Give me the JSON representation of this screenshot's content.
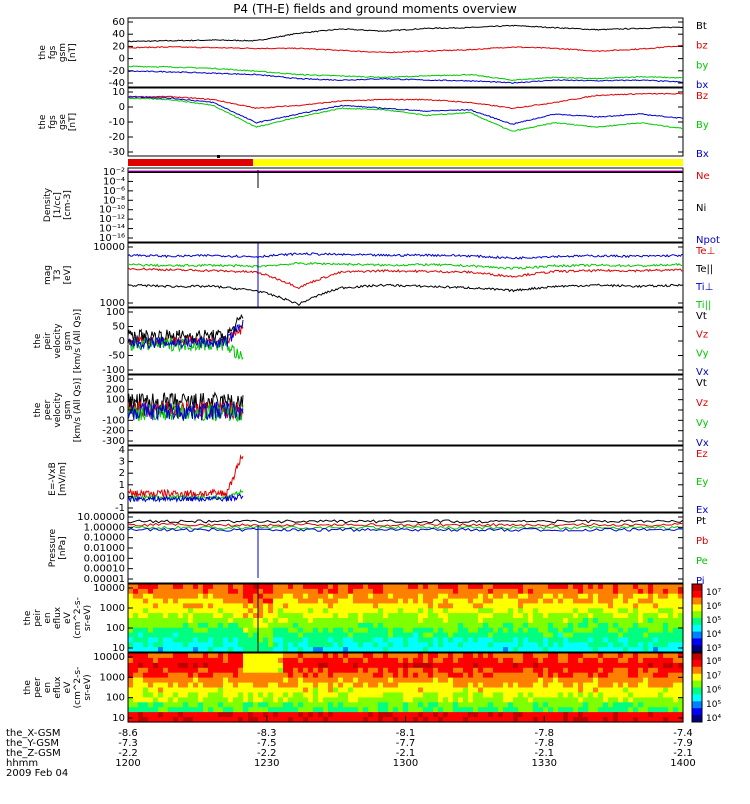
{
  "title": "P4 (TH-E) fields and ground moments overview",
  "date_label": "2009 Feb 04",
  "colors": {
    "black": "#000000",
    "red": "#e00000",
    "green": "#00c800",
    "blue": "#0000d0",
    "yellow": "#ffff00"
  },
  "chart_data": [
    {
      "id": "fgs_gsm",
      "type": "line",
      "ylabel": [
        "the",
        "fgs",
        "gsm",
        "[nT]"
      ],
      "ylim": [
        -40,
        60
      ],
      "yticks": [
        60,
        40,
        20,
        0,
        -20,
        -40
      ],
      "series": [
        {
          "name": "Bt",
          "color": "black",
          "values": [
            26,
            27,
            28,
            27,
            38,
            44,
            41,
            45,
            46,
            49,
            46,
            43,
            45,
            47
          ]
        },
        {
          "name": "bz",
          "color": "red",
          "values": [
            17,
            18,
            17,
            16,
            16,
            13,
            10,
            12,
            14,
            18,
            16,
            12,
            15,
            20
          ]
        },
        {
          "name": "by",
          "color": "green",
          "values": [
            -10,
            -11,
            -13,
            -17,
            -22,
            -24,
            -26,
            -24,
            -22,
            -30,
            -26,
            -28,
            -25,
            -27
          ]
        },
        {
          "name": "bx",
          "color": "blue",
          "values": [
            -17,
            -18,
            -20,
            -22,
            -28,
            -30,
            -28,
            -30,
            -31,
            -34,
            -30,
            -31,
            -30,
            -33
          ]
        }
      ]
    },
    {
      "id": "fgs_gse",
      "type": "line",
      "ylabel": [
        "the",
        "fgs",
        "gse",
        "[nT]"
      ],
      "ylim": [
        -35,
        12
      ],
      "yticks": [
        10,
        0,
        -10,
        -20,
        -30
      ],
      "series": [
        {
          "name": "Bz",
          "color": "red",
          "values": [
            6,
            6,
            4,
            -2,
            0,
            3,
            4,
            4,
            2,
            -2,
            2,
            7,
            8,
            8
          ]
        },
        {
          "name": "By",
          "color": "green",
          "values": [
            5,
            4,
            0,
            -15,
            -8,
            -2,
            -3,
            -7,
            -5,
            -18,
            -12,
            -15,
            -12,
            -16
          ]
        },
        {
          "name": "Bx",
          "color": "blue",
          "values": [
            6,
            5,
            2,
            -12,
            -6,
            0,
            -2,
            -4,
            -3,
            -13,
            -6,
            -8,
            -6,
            -9
          ]
        }
      ]
    },
    {
      "id": "density",
      "type": "line",
      "ylabel": [
        "Density",
        "[1/cc]",
        "[cm-3]"
      ],
      "yticks": [
        "10⁻²",
        "10⁻⁴",
        "10⁻⁶",
        "10⁻⁸",
        "10⁻¹⁰",
        "10⁻¹²",
        "10⁻¹⁴",
        "10⁻¹⁶"
      ],
      "series": [
        {
          "name": "Ne",
          "color": "red"
        },
        {
          "name": "Ni",
          "color": "black"
        },
        {
          "name": "Npot",
          "color": "blue"
        }
      ]
    },
    {
      "id": "temperature",
      "type": "line",
      "ylabel": [
        "mag",
        "T3",
        "[eV]"
      ],
      "ylim": [
        1000,
        10000
      ],
      "yticks": [
        "10000",
        "1000"
      ],
      "series": [
        {
          "name": "Te⊥",
          "color": "red",
          "values": [
            4000,
            3800,
            3700,
            3500,
            2000,
            3500,
            3700,
            3600,
            3500,
            3000,
            3600,
            3700,
            3700,
            3800
          ]
        },
        {
          "name": "Te||",
          "color": "black",
          "values": [
            2200,
            2100,
            2100,
            1800,
            1100,
            2000,
            2200,
            2100,
            2000,
            1800,
            2100,
            2200,
            2100,
            2200
          ]
        },
        {
          "name": "Ti⊥",
          "color": "blue",
          "values": [
            6500,
            6200,
            6400,
            6100,
            6800,
            6600,
            6400,
            6500,
            6300,
            5800,
            6200,
            6300,
            6200,
            6400
          ]
        },
        {
          "name": "Ti||",
          "color": "green",
          "values": [
            4600,
            4400,
            4500,
            4300,
            4800,
            4700,
            4500,
            4600,
            4400,
            4000,
            4400,
            4500,
            4400,
            4600
          ]
        }
      ]
    },
    {
      "id": "peir_velocity",
      "type": "line",
      "ylabel": [
        "the",
        "peir",
        "velocity",
        "gsm",
        "[km/s (All Qs)]"
      ],
      "ylim": [
        -100,
        100
      ],
      "yticks": [
        100,
        50,
        0,
        -50,
        -100
      ],
      "series": [
        {
          "name": "Vt",
          "color": "black"
        },
        {
          "name": "Vz",
          "color": "red"
        },
        {
          "name": "Vy",
          "color": "green"
        },
        {
          "name": "Vx",
          "color": "blue"
        }
      ]
    },
    {
      "id": "peer_velocity",
      "type": "line",
      "ylabel": [
        "the",
        "peer",
        "velocity",
        "gsm",
        "[km/s (All Qs)]"
      ],
      "ylim": [
        -300,
        300
      ],
      "yticks": [
        300,
        200,
        100,
        0,
        -100,
        -200,
        -300
      ],
      "series": [
        {
          "name": "Vt",
          "color": "black"
        },
        {
          "name": "Vz",
          "color": "red"
        },
        {
          "name": "Vy",
          "color": "green"
        },
        {
          "name": "Vx",
          "color": "blue"
        }
      ]
    },
    {
      "id": "efield",
      "type": "line",
      "ylabel": [
        "E=-VxB",
        "[mV/m]"
      ],
      "ylim": [
        -1,
        4
      ],
      "yticks": [
        4,
        3,
        2,
        1,
        0,
        -1
      ],
      "series": [
        {
          "name": "Ez",
          "color": "red"
        },
        {
          "name": "Ey",
          "color": "green"
        },
        {
          "name": "Ex",
          "color": "blue"
        }
      ]
    },
    {
      "id": "pressure",
      "type": "line",
      "ylabel": [
        "Pressure",
        "[nPa]"
      ],
      "ylim": [
        1e-05,
        10
      ],
      "yticks": [
        "10.00000",
        "1.00000",
        "0.10000",
        "0.01000",
        "0.00100",
        "0.00010",
        "0.00001"
      ],
      "series": [
        {
          "name": "Pt",
          "color": "black"
        },
        {
          "name": "Pb",
          "color": "red"
        },
        {
          "name": "Pe",
          "color": "green"
        },
        {
          "name": "Pi",
          "color": "blue"
        }
      ]
    },
    {
      "id": "peir_spectrogram",
      "type": "heatmap",
      "ylabel": [
        "the",
        "peir",
        "en",
        "eflux",
        "eV",
        "(cm^2-s-",
        "sr-eV)"
      ],
      "yticks": [
        "10000",
        "1000",
        "100",
        "10"
      ],
      "colorbar_ticks": [
        "10⁷",
        "10⁶",
        "10⁵",
        "10⁴",
        "10³"
      ]
    },
    {
      "id": "peer_spectrogram",
      "type": "heatmap",
      "ylabel": [
        "the",
        "peer",
        "en",
        "eflux",
        "eV",
        "(cm^2-s-",
        "sr-eV)"
      ],
      "yticks": [
        "10000",
        "1000",
        "100",
        "10"
      ],
      "colorbar_ticks": [
        "10⁸",
        "10⁷",
        "10⁶",
        "10⁵",
        "10⁴"
      ]
    }
  ],
  "x_axis": {
    "time_ticks": [
      "1200",
      "1230",
      "1300",
      "1330",
      "1400"
    ],
    "rows": [
      {
        "label": "the_X-GSM",
        "values": [
          "-8.6",
          "-8.3",
          "-8.1",
          "-7.8",
          "-7.4"
        ]
      },
      {
        "label": "the_Y-GSM",
        "values": [
          "-7.3",
          "-7.5",
          "-7.7",
          "-7.8",
          "-7.9"
        ]
      },
      {
        "label": "the_Z-GSM",
        "values": [
          "-2.2",
          "-2.2",
          "-2.1",
          "-2.1",
          "-2.1"
        ]
      },
      {
        "label": "hhmm",
        "values": [
          "1200",
          "1230",
          "1300",
          "1330",
          "1400"
        ]
      }
    ]
  }
}
